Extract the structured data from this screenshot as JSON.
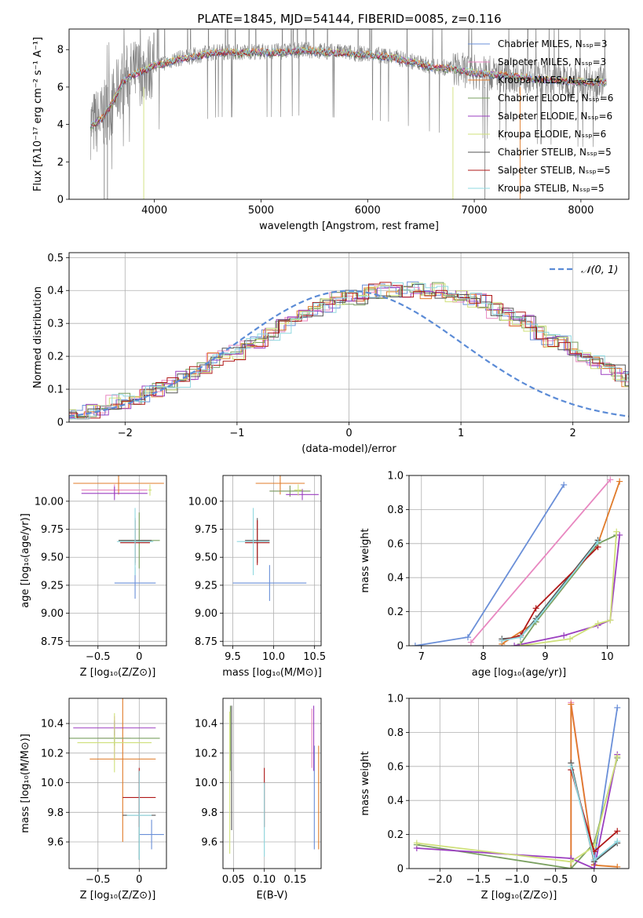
{
  "figure": {
    "title": "PLATE=1845, MJD=54144, FIBERID=0085, z=0.116"
  },
  "palette": {
    "series_colors": [
      "#6a8fd8",
      "#e887c0",
      "#e07b2a",
      "#7aa060",
      "#9b3fc0",
      "#cfe07a",
      "#555555",
      "#b01818",
      "#8fd8e0"
    ],
    "spectrum_gray": "#808080",
    "normal_curve": "#5b8bd6",
    "grid": "#b0b0b0"
  },
  "chart_data": [
    {
      "id": "spectrum",
      "type": "line",
      "xlabel": "wavelength [Angstrom, rest frame]",
      "ylabel": "Flux [fλ10⁻¹⁷ erg cm⁻² s⁻¹ A⁻¹]",
      "xlim": [
        3200,
        8450
      ],
      "ylim": [
        0,
        9.1
      ],
      "xticks": [
        4000,
        5000,
        6000,
        7000,
        8000
      ],
      "yticks": [
        0,
        2,
        4,
        6,
        8
      ],
      "grid": false,
      "legend_position": "upper right",
      "spectrum_x": [
        3400,
        3500,
        3600,
        3700,
        3800,
        3900,
        4000,
        4100,
        4200,
        4300,
        4400,
        4500,
        4600,
        4700,
        4800,
        4900,
        5000,
        5200,
        5400,
        5600,
        5800,
        6000,
        6200,
        6400,
        6600,
        6800,
        7000,
        7200,
        7400,
        7600,
        7800,
        8000,
        8240
      ],
      "spectrum_y": [
        3.95,
        4.3,
        5.1,
        6.3,
        6.7,
        6.9,
        7.2,
        7.3,
        7.5,
        7.6,
        7.7,
        7.8,
        7.9,
        7.9,
        7.85,
        7.9,
        7.9,
        7.9,
        8.0,
        7.9,
        7.85,
        7.75,
        7.65,
        7.4,
        7.1,
        7.0,
        6.8,
        6.7,
        6.6,
        6.45,
        6.4,
        6.3,
        6.3
      ],
      "series": [
        {
          "name": "Chabrier MILES, Nₛₛₚ=3"
        },
        {
          "name": "Salpeter MILES, Nₛₛₚ=3"
        },
        {
          "name": "Kroupa MILES, Nₛₛₚ=4"
        },
        {
          "name": "Chabrier ELODIE, Nₛₛₚ=6"
        },
        {
          "name": "Salpeter ELODIE, Nₛₛₚ=6"
        },
        {
          "name": "Kroupa ELODIE, Nₛₛₚ=6"
        },
        {
          "name": "Chabrier STELIB, Nₛₛₚ=5"
        },
        {
          "name": "Salpeter STELIB, Nₛₛₚ=5"
        },
        {
          "name": "Kroupa STELIB, Nₛₛₚ=5"
        }
      ]
    },
    {
      "id": "residuals",
      "type": "line",
      "xlabel": "(data-model)/error",
      "ylabel": "Normed distribution",
      "xlim": [
        -2.5,
        2.5
      ],
      "ylim": [
        0,
        0.515
      ],
      "xticks": [
        -2,
        -1,
        0,
        1,
        2
      ],
      "yticks": [
        0.0,
        0.1,
        0.2,
        0.3,
        0.4,
        0.5
      ],
      "grid": true,
      "legend_position": "upper right",
      "normal_label": "𝒩(0, 1)",
      "bin_width": 0.1,
      "hist_base": [
        0.017,
        0.02,
        0.03,
        0.045,
        0.06,
        0.065,
        0.07,
        0.085,
        0.1,
        0.11,
        0.13,
        0.15,
        0.16,
        0.19,
        0.2,
        0.21,
        0.23,
        0.25,
        0.27,
        0.29,
        0.31,
        0.33,
        0.34,
        0.35,
        0.37,
        0.38,
        0.38,
        0.4,
        0.4,
        0.4,
        0.4,
        0.41,
        0.4,
        0.4,
        0.38,
        0.38,
        0.37,
        0.37,
        0.34,
        0.33,
        0.31,
        0.3,
        0.27,
        0.25,
        0.24,
        0.22,
        0.2,
        0.18,
        0.16,
        0.15,
        0.13,
        0.12,
        0.11,
        0.1,
        0.085,
        0.075,
        0.065,
        0.06,
        0.05,
        0.04,
        0.035,
        0.03,
        0.025
      ]
    },
    {
      "id": "age-vs-Z",
      "type": "scatter",
      "xlabel": "Z [log₁₀(Z/Z⊙)]",
      "ylabel": "age  [log₁₀(age/yr)]",
      "xlim": [
        -0.85,
        0.33
      ],
      "ylim": [
        8.71,
        10.23
      ],
      "xticks": [
        -0.5,
        0.0
      ],
      "yticks": [
        8.75,
        9.0,
        9.25,
        9.5,
        9.75,
        10.0
      ],
      "grid": true,
      "points": [
        {
          "x": -0.05,
          "y": 9.27,
          "xerr": 0.25,
          "yerr": 0.14
        },
        {
          "x": -0.3,
          "y": 10.1,
          "xerr": 0.4,
          "yerr": 0.05
        },
        {
          "x": -0.25,
          "y": 10.16,
          "xerr": 0.55,
          "yerr": 0.1
        },
        {
          "x": 0.0,
          "y": 9.65,
          "xerr": 0.25,
          "yerr": 0.25
        },
        {
          "x": -0.3,
          "y": 10.07,
          "xerr": 0.4,
          "yerr": 0.06
        },
        {
          "x": 0.13,
          "y": 10.1,
          "xerr": 0.02,
          "yerr": 0.05
        },
        {
          "x": -0.05,
          "y": 9.65,
          "xerr": 0.2,
          "yerr": 0.2
        },
        {
          "x": -0.05,
          "y": 9.63,
          "xerr": 0.18,
          "yerr": 0.2
        },
        {
          "x": -0.05,
          "y": 9.64,
          "xerr": 0.22,
          "yerr": 0.3
        }
      ]
    },
    {
      "id": "age-vs-mass",
      "type": "scatter",
      "xlabel": "mass [log₁₀(M/M⊙)]",
      "ylabel": "",
      "xlim": [
        9.38,
        10.58
      ],
      "ylim": [
        8.71,
        10.23
      ],
      "xticks": [
        9.5,
        10.0,
        10.5
      ],
      "yticks": [
        8.75,
        9.0,
        9.25,
        9.5,
        9.75,
        10.0
      ],
      "grid": true,
      "points": [
        {
          "x": 9.95,
          "y": 9.27,
          "xerr": 0.45,
          "yerr": 0.16
        },
        {
          "x": 10.2,
          "y": 10.09,
          "xerr": 0.25,
          "yerr": 0.05
        },
        {
          "x": 10.08,
          "y": 10.16,
          "xerr": 0.3,
          "yerr": 0.1
        },
        {
          "x": 10.2,
          "y": 10.09,
          "xerr": 0.25,
          "yerr": 0.05
        },
        {
          "x": 10.35,
          "y": 10.06,
          "xerr": 0.2,
          "yerr": 0.05
        },
        {
          "x": 10.3,
          "y": 10.1,
          "xerr": 0.05,
          "yerr": 0.05
        },
        {
          "x": 9.8,
          "y": 9.65,
          "xerr": 0.15,
          "yerr": 0.2
        },
        {
          "x": 9.8,
          "y": 9.63,
          "xerr": 0.15,
          "yerr": 0.2
        },
        {
          "x": 9.75,
          "y": 9.64,
          "xerr": 0.2,
          "yerr": 0.3
        }
      ]
    },
    {
      "id": "massweight-vs-age",
      "type": "line",
      "xlabel": "age  [log₁₀(age/yr)]",
      "ylabel": "mass weight",
      "xlim": [
        6.8,
        10.35
      ],
      "ylim": [
        0,
        1.0
      ],
      "xticks": [
        7,
        8,
        9,
        10
      ],
      "yticks": [
        0.0,
        0.2,
        0.4,
        0.6,
        0.8,
        1.0
      ],
      "grid": true,
      "series": [
        {
          "x": [
            6.9,
            7.75,
            9.3
          ],
          "y": [
            0.0,
            0.05,
            0.945
          ]
        },
        {
          "x": [
            7.8,
            10.05
          ],
          "y": [
            0.02,
            0.975
          ]
        },
        {
          "x": [
            8.3,
            8.85,
            9.85,
            10.2
          ],
          "y": [
            0.01,
            0.14,
            0.6,
            0.965
          ]
        },
        {
          "x": [
            8.6,
            8.85,
            9.85,
            10.15
          ],
          "y": [
            0.01,
            0.14,
            0.6,
            0.65
          ]
        },
        {
          "x": [
            8.5,
            9.3,
            9.85,
            10.05,
            10.2
          ],
          "y": [
            0.0,
            0.06,
            0.12,
            0.15,
            0.65
          ]
        },
        {
          "x": [
            8.6,
            9.4,
            9.85,
            10.05,
            10.15
          ],
          "y": [
            0.0,
            0.04,
            0.13,
            0.15,
            0.67
          ]
        },
        {
          "x": [
            8.3,
            8.6,
            8.85,
            9.85
          ],
          "y": [
            0.04,
            0.05,
            0.16,
            0.62
          ]
        },
        {
          "x": [
            8.3,
            8.6,
            8.85,
            9.85
          ],
          "y": [
            0.03,
            0.06,
            0.22,
            0.58
          ]
        },
        {
          "x": [
            8.3,
            8.6,
            8.85,
            9.85
          ],
          "y": [
            0.03,
            0.05,
            0.15,
            0.61
          ]
        }
      ]
    },
    {
      "id": "mass-vs-Z",
      "type": "scatter",
      "xlabel": "Z [log₁₀(Z/Z⊙)]",
      "ylabel": "mass [log₁₀(M/M⊙)]",
      "xlim": [
        -0.85,
        0.33
      ],
      "ylim": [
        9.42,
        10.57
      ],
      "xticks": [
        -0.5,
        0.0
      ],
      "yticks": [
        9.6,
        9.8,
        10.0,
        10.2,
        10.4
      ],
      "grid": true,
      "points": [
        {
          "x": 0.15,
          "y": 9.65,
          "xerr": 0.15,
          "yerr": 0.1
        },
        {
          "x": -0.3,
          "y": 10.3,
          "xerr": 0.2,
          "yerr": 0.15
        },
        {
          "x": -0.2,
          "y": 10.16,
          "xerr": 0.4,
          "yerr": 0.56
        },
        {
          "x": -0.3,
          "y": 10.3,
          "xerr": 0.55,
          "yerr": 0.05
        },
        {
          "x": -0.3,
          "y": 10.37,
          "xerr": 0.5,
          "yerr": 0.05
        },
        {
          "x": -0.3,
          "y": 10.27,
          "xerr": 0.45,
          "yerr": 0.2
        },
        {
          "x": 0.0,
          "y": 9.78,
          "xerr": 0.2,
          "yerr": 0.3
        },
        {
          "x": 0.0,
          "y": 9.9,
          "xerr": 0.2,
          "yerr": 0.2
        },
        {
          "x": 0.0,
          "y": 9.78,
          "xerr": 0.15,
          "yerr": 0.3
        }
      ]
    },
    {
      "id": "mass-vs-ebv",
      "type": "scatter",
      "xlabel": "E(B-V)",
      "ylabel": "",
      "xlim": [
        0.033,
        0.192
      ],
      "ylim": [
        9.42,
        10.57
      ],
      "xticks": [
        0.05,
        0.1,
        0.15
      ],
      "yticks": [
        9.6,
        9.8,
        10.0,
        10.2,
        10.4
      ],
      "grid": true,
      "points": [
        {
          "x": 0.181,
          "y": 9.9,
          "xerr": 0.0,
          "yerr": 0.35
        },
        {
          "x": 0.177,
          "y": 10.3,
          "xerr": 0.0,
          "yerr": 0.2
        },
        {
          "x": 0.188,
          "y": 9.9,
          "xerr": 0.0,
          "yerr": 0.35
        },
        {
          "x": 0.045,
          "y": 10.3,
          "xerr": 0.0,
          "yerr": 0.22
        },
        {
          "x": 0.18,
          "y": 10.3,
          "xerr": 0.0,
          "yerr": 0.22
        },
        {
          "x": 0.044,
          "y": 10.0,
          "xerr": 0.0,
          "yerr": 0.48
        },
        {
          "x": 0.047,
          "y": 10.1,
          "xerr": 0.0,
          "yerr": 0.42
        },
        {
          "x": 0.1,
          "y": 9.9,
          "xerr": 0.0,
          "yerr": 0.2
        },
        {
          "x": 0.1,
          "y": 9.75,
          "xerr": 0.0,
          "yerr": 0.25
        }
      ]
    },
    {
      "id": "massweight-vs-Z",
      "type": "line",
      "xlabel": "Z [log₁₀(Z/Z⊙)]",
      "ylabel": "mass weight",
      "xlim": [
        -2.4,
        0.45
      ],
      "ylim": [
        0,
        1.0
      ],
      "xticks": [
        -2.0,
        -1.5,
        -1.0,
        -0.5,
        0.0
      ],
      "yticks": [
        0.0,
        0.2,
        0.4,
        0.6,
        0.8,
        1.0
      ],
      "grid": true,
      "series": [
        {
          "x": [
            0.0,
            0.3
          ],
          "y": [
            0.05,
            0.945
          ]
        },
        {
          "x": [
            -0.3,
            -0.3,
            0.0
          ],
          "y": [
            0.0,
            0.975,
            0.025
          ]
        },
        {
          "x": [
            -0.3,
            -0.3,
            0.0,
            0.3
          ],
          "y": [
            0.0,
            0.965,
            0.02,
            0.01
          ]
        },
        {
          "x": [
            -2.3,
            -0.3,
            0.0,
            0.3
          ],
          "y": [
            0.14,
            0.0,
            0.15,
            0.65
          ]
        },
        {
          "x": [
            -2.3,
            -0.3,
            0.0,
            0.3
          ],
          "y": [
            0.12,
            0.06,
            0.0,
            0.67
          ]
        },
        {
          "x": [
            -2.3,
            -0.3,
            0.0,
            0.3
          ],
          "y": [
            0.15,
            0.04,
            0.13,
            0.66
          ]
        },
        {
          "x": [
            -0.3,
            0.0,
            0.3
          ],
          "y": [
            0.62,
            0.04,
            0.15
          ]
        },
        {
          "x": [
            -0.3,
            0.0,
            0.3
          ],
          "y": [
            0.58,
            0.1,
            0.22
          ]
        },
        {
          "x": [
            -0.3,
            0.0,
            0.3
          ],
          "y": [
            0.6,
            0.05,
            0.16
          ]
        }
      ]
    }
  ]
}
